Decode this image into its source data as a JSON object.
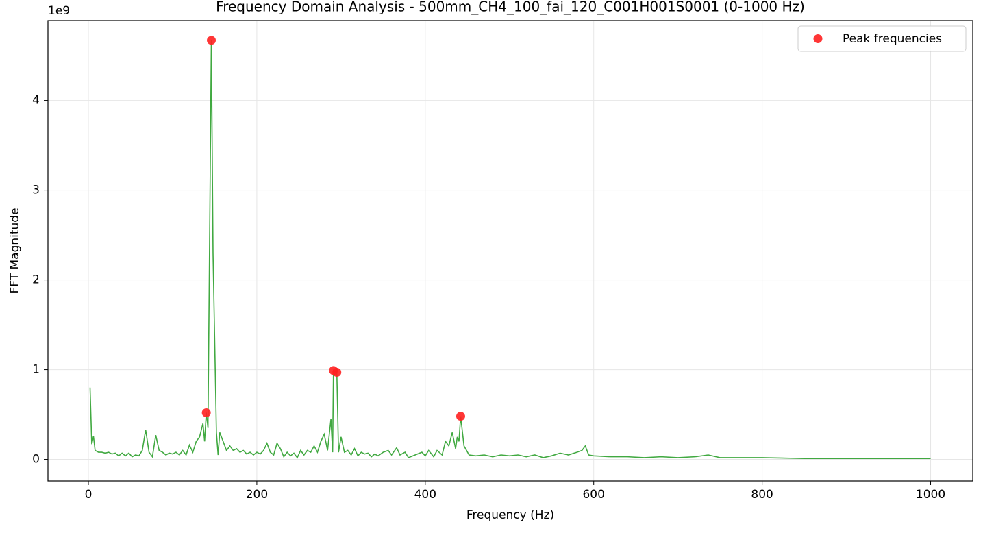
{
  "chart_data": {
    "type": "line",
    "title": "Frequency Domain Analysis - 500mm_CH4_100_fai_120_C001H001S0001 (0-1000 Hz)",
    "x_label": "Frequency (Hz)",
    "y_label": "FFT Magnitude",
    "y_offset_label": "1e9",
    "xlim": [
      -48,
      1050
    ],
    "ylim": [
      -0.24,
      4.89
    ],
    "xticks": [
      0,
      200,
      400,
      600,
      800,
      1000
    ],
    "yticks": [
      0,
      1,
      2,
      3,
      4
    ],
    "grid": true,
    "legend": "upper right",
    "x": [
      2,
      4,
      6,
      8,
      12,
      16,
      20,
      24,
      28,
      32,
      36,
      40,
      44,
      48,
      52,
      56,
      60,
      64,
      68,
      72,
      76,
      80,
      84,
      88,
      92,
      96,
      100,
      104,
      108,
      112,
      116,
      120,
      124,
      128,
      132,
      136,
      138,
      140,
      142,
      146,
      148,
      152,
      154,
      156,
      160,
      164,
      168,
      172,
      176,
      180,
      184,
      188,
      192,
      196,
      200,
      204,
      208,
      212,
      216,
      220,
      224,
      228,
      232,
      236,
      240,
      244,
      248,
      252,
      256,
      260,
      264,
      268,
      272,
      276,
      280,
      284,
      288,
      290,
      291,
      295,
      297,
      300,
      304,
      308,
      312,
      316,
      320,
      324,
      328,
      332,
      336,
      340,
      344,
      350,
      356,
      360,
      366,
      370,
      376,
      380,
      388,
      396,
      400,
      404,
      410,
      414,
      420,
      424,
      428,
      432,
      436,
      438,
      440,
      442,
      446,
      452,
      460,
      470,
      480,
      490,
      500,
      510,
      520,
      530,
      540,
      550,
      560,
      570,
      580,
      586,
      590,
      594,
      600,
      620,
      640,
      660,
      680,
      700,
      720,
      736,
      750,
      780,
      800,
      850,
      900,
      950,
      1000
    ],
    "series": [
      {
        "color": "#2ca02c",
        "values": [
          0.8,
          0.17,
          0.26,
          0.1,
          0.08,
          0.08,
          0.07,
          0.08,
          0.06,
          0.07,
          0.04,
          0.07,
          0.04,
          0.07,
          0.03,
          0.05,
          0.04,
          0.1,
          0.33,
          0.08,
          0.03,
          0.27,
          0.1,
          0.08,
          0.05,
          0.07,
          0.06,
          0.08,
          0.05,
          0.1,
          0.05,
          0.16,
          0.08,
          0.2,
          0.25,
          0.4,
          0.2,
          0.52,
          0.35,
          4.67,
          2.3,
          0.3,
          0.05,
          0.3,
          0.2,
          0.1,
          0.15,
          0.1,
          0.12,
          0.08,
          0.1,
          0.06,
          0.08,
          0.05,
          0.08,
          0.06,
          0.1,
          0.18,
          0.08,
          0.05,
          0.18,
          0.12,
          0.03,
          0.08,
          0.04,
          0.07,
          0.02,
          0.1,
          0.05,
          0.1,
          0.08,
          0.15,
          0.08,
          0.2,
          0.28,
          0.1,
          0.45,
          0.08,
          0.99,
          0.97,
          0.08,
          0.25,
          0.08,
          0.1,
          0.05,
          0.12,
          0.04,
          0.08,
          0.06,
          0.07,
          0.03,
          0.06,
          0.04,
          0.08,
          0.1,
          0.05,
          0.13,
          0.05,
          0.08,
          0.02,
          0.05,
          0.08,
          0.04,
          0.1,
          0.03,
          0.1,
          0.05,
          0.2,
          0.15,
          0.3,
          0.12,
          0.25,
          0.2,
          0.48,
          0.15,
          0.05,
          0.04,
          0.05,
          0.03,
          0.05,
          0.04,
          0.05,
          0.03,
          0.05,
          0.02,
          0.04,
          0.07,
          0.05,
          0.08,
          0.1,
          0.15,
          0.05,
          0.04,
          0.03,
          0.03,
          0.02,
          0.03,
          0.02,
          0.03,
          0.05,
          0.02,
          0.02,
          0.02,
          0.01,
          0.01,
          0.01,
          0.01
        ]
      }
    ],
    "peaks": {
      "type": "scatter",
      "name": "Peak frequencies",
      "color": "#ff2020",
      "x": [
        140,
        146,
        291,
        295,
        442
      ],
      "values": [
        0.52,
        4.67,
        0.99,
        0.97,
        0.48
      ]
    }
  }
}
